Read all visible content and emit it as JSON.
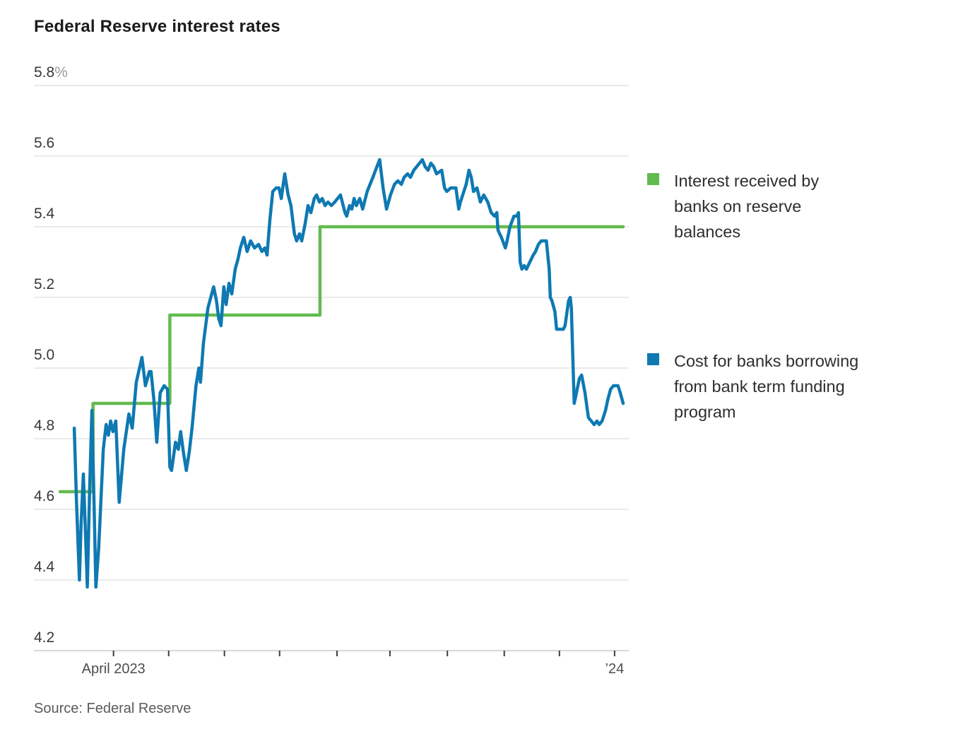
{
  "header": {
    "title": "Federal Reserve interest rates"
  },
  "footer": {
    "source": "Source: Federal Reserve"
  },
  "chart_data": {
    "type": "line",
    "title": "Federal Reserve interest rates",
    "source": "Source: Federal Reserve",
    "background": "#ffffff",
    "grid": {
      "show": true,
      "color": "#e4e4e4",
      "axis_line_color": "#cccccc",
      "tick_color": "#3c3c3c"
    },
    "y_axis": {
      "unit": "percent",
      "min": 4.2,
      "max": 5.8,
      "step": 0.2,
      "tick_values": [
        5.8,
        5.6,
        5.4,
        5.2,
        5.0,
        4.8,
        4.6,
        4.4,
        4.2
      ],
      "tick_labels": [
        "5.8%",
        "5.6",
        "5.4",
        "5.2",
        "5.0",
        "4.8",
        "4.6",
        "4.4",
        "4.2"
      ]
    },
    "x_axis": {
      "description": "Time, daily, from BTFP launch (mid-March 2023) to early January 2024; ticks are month starts April 2023 through January 2024",
      "x_unit": "percent of plot width",
      "tick_positions_pct": [
        9.4,
        19.1,
        28.9,
        38.6,
        48.7,
        58.0,
        68.1,
        78.1,
        87.8,
        97.5
      ],
      "tick_labels": [
        "April 2023",
        "",
        "",
        "",
        "",
        "",
        "",
        "",
        "",
        "’24"
      ]
    },
    "legend": {
      "position": "right",
      "items": [
        {
          "color": "#62bb4e",
          "lines": [
            "Interest received by",
            "banks on reserve",
            "balances"
          ]
        },
        {
          "color": "#0e79b2",
          "lines": [
            "Cost for banks borrowing",
            "from bank term funding",
            "program"
          ]
        }
      ]
    },
    "series": [
      {
        "name": "Interest received by banks on reserve balances",
        "color": "#62bb4e",
        "style": "step",
        "stroke_width": 4.5,
        "points": [
          [
            0,
            4.65
          ],
          [
            5.8,
            4.65
          ],
          [
            5.8,
            4.9
          ],
          [
            19.3,
            4.9
          ],
          [
            19.3,
            5.15
          ],
          [
            45.7,
            5.15
          ],
          [
            45.7,
            5.4
          ],
          [
            99.0,
            5.4
          ]
        ]
      },
      {
        "name": "Cost for banks borrowing from bank term funding program",
        "color": "#0e79b2",
        "style": "line",
        "stroke_width": 4.5,
        "points": [
          [
            2.5,
            4.83
          ],
          [
            2.9,
            4.62
          ],
          [
            3.4,
            4.4
          ],
          [
            3.7,
            4.56
          ],
          [
            4.1,
            4.7
          ],
          [
            4.5,
            4.52
          ],
          [
            4.8,
            4.38
          ],
          [
            5.2,
            4.66
          ],
          [
            5.6,
            4.88
          ],
          [
            6.0,
            4.6
          ],
          [
            6.3,
            4.38
          ],
          [
            6.8,
            4.49
          ],
          [
            7.6,
            4.77
          ],
          [
            8.1,
            4.84
          ],
          [
            8.5,
            4.81
          ],
          [
            8.9,
            4.85
          ],
          [
            9.3,
            4.82
          ],
          [
            9.8,
            4.85
          ],
          [
            10.4,
            4.62
          ],
          [
            11.2,
            4.77
          ],
          [
            12.1,
            4.87
          ],
          [
            12.7,
            4.83
          ],
          [
            13.4,
            4.96
          ],
          [
            14.4,
            5.03
          ],
          [
            15.0,
            4.95
          ],
          [
            15.7,
            4.99
          ],
          [
            16.0,
            4.99
          ],
          [
            16.5,
            4.91
          ],
          [
            17.0,
            4.79
          ],
          [
            17.6,
            4.93
          ],
          [
            18.3,
            4.95
          ],
          [
            18.9,
            4.94
          ],
          [
            19.3,
            4.72
          ],
          [
            19.6,
            4.71
          ],
          [
            20.3,
            4.79
          ],
          [
            20.8,
            4.77
          ],
          [
            21.2,
            4.82
          ],
          [
            21.7,
            4.76
          ],
          [
            22.2,
            4.71
          ],
          [
            22.7,
            4.76
          ],
          [
            23.2,
            4.83
          ],
          [
            23.9,
            4.95
          ],
          [
            24.4,
            5.0
          ],
          [
            24.7,
            4.96
          ],
          [
            25.2,
            5.07
          ],
          [
            26.0,
            5.17
          ],
          [
            26.5,
            5.2
          ],
          [
            27.0,
            5.23
          ],
          [
            27.5,
            5.19
          ],
          [
            27.9,
            5.14
          ],
          [
            28.3,
            5.12
          ],
          [
            28.8,
            5.23
          ],
          [
            29.2,
            5.18
          ],
          [
            29.7,
            5.24
          ],
          [
            30.2,
            5.21
          ],
          [
            30.8,
            5.28
          ],
          [
            31.3,
            5.31
          ],
          [
            31.7,
            5.34
          ],
          [
            32.3,
            5.37
          ],
          [
            32.9,
            5.33
          ],
          [
            33.5,
            5.36
          ],
          [
            34.2,
            5.34
          ],
          [
            34.9,
            5.35
          ],
          [
            35.5,
            5.33
          ],
          [
            36.0,
            5.34
          ],
          [
            36.4,
            5.32
          ],
          [
            36.9,
            5.42
          ],
          [
            37.4,
            5.5
          ],
          [
            38.0,
            5.51
          ],
          [
            38.5,
            5.51
          ],
          [
            38.9,
            5.48
          ],
          [
            39.5,
            5.55
          ],
          [
            40.1,
            5.49
          ],
          [
            40.6,
            5.46
          ],
          [
            41.2,
            5.38
          ],
          [
            41.6,
            5.36
          ],
          [
            42.1,
            5.38
          ],
          [
            42.5,
            5.36
          ],
          [
            43.1,
            5.41
          ],
          [
            43.6,
            5.46
          ],
          [
            44.1,
            5.44
          ],
          [
            44.7,
            5.48
          ],
          [
            45.1,
            5.49
          ],
          [
            45.6,
            5.47
          ],
          [
            46.1,
            5.48
          ],
          [
            46.6,
            5.46
          ],
          [
            47.1,
            5.47
          ],
          [
            47.7,
            5.46
          ],
          [
            48.3,
            5.47
          ],
          [
            48.8,
            5.48
          ],
          [
            49.3,
            5.49
          ],
          [
            50.1,
            5.44
          ],
          [
            50.4,
            5.43
          ],
          [
            50.9,
            5.46
          ],
          [
            51.3,
            5.45
          ],
          [
            51.7,
            5.48
          ],
          [
            52.1,
            5.46
          ],
          [
            52.7,
            5.48
          ],
          [
            53.2,
            5.45
          ],
          [
            54.0,
            5.5
          ],
          [
            55.0,
            5.54
          ],
          [
            55.7,
            5.57
          ],
          [
            56.2,
            5.59
          ],
          [
            56.8,
            5.51
          ],
          [
            57.4,
            5.45
          ],
          [
            58.1,
            5.49
          ],
          [
            58.8,
            5.52
          ],
          [
            59.4,
            5.53
          ],
          [
            60.0,
            5.52
          ],
          [
            60.5,
            5.54
          ],
          [
            61.1,
            5.55
          ],
          [
            61.6,
            5.54
          ],
          [
            62.2,
            5.56
          ],
          [
            62.7,
            5.57
          ],
          [
            63.2,
            5.58
          ],
          [
            63.7,
            5.59
          ],
          [
            64.2,
            5.57
          ],
          [
            64.7,
            5.56
          ],
          [
            65.2,
            5.58
          ],
          [
            65.7,
            5.57
          ],
          [
            66.2,
            5.55
          ],
          [
            67.1,
            5.56
          ],
          [
            67.6,
            5.51
          ],
          [
            68.0,
            5.5
          ],
          [
            68.7,
            5.51
          ],
          [
            69.2,
            5.51
          ],
          [
            69.6,
            5.51
          ],
          [
            70.1,
            5.45
          ],
          [
            70.4,
            5.47
          ],
          [
            70.8,
            5.49
          ],
          [
            71.4,
            5.52
          ],
          [
            71.9,
            5.56
          ],
          [
            72.3,
            5.54
          ],
          [
            72.7,
            5.5
          ],
          [
            73.3,
            5.51
          ],
          [
            73.9,
            5.47
          ],
          [
            74.5,
            5.49
          ],
          [
            75.2,
            5.47
          ],
          [
            75.8,
            5.44
          ],
          [
            76.4,
            5.43
          ],
          [
            76.8,
            5.44
          ],
          [
            77.0,
            5.39
          ],
          [
            77.6,
            5.37
          ],
          [
            78.3,
            5.34
          ],
          [
            78.6,
            5.36
          ],
          [
            79.1,
            5.4
          ],
          [
            79.8,
            5.43
          ],
          [
            80.3,
            5.43
          ],
          [
            80.6,
            5.44
          ],
          [
            80.9,
            5.3
          ],
          [
            81.2,
            5.28
          ],
          [
            81.6,
            5.29
          ],
          [
            82.0,
            5.28
          ],
          [
            82.6,
            5.3
          ],
          [
            83.2,
            5.32
          ],
          [
            83.6,
            5.33
          ],
          [
            84.1,
            5.35
          ],
          [
            84.6,
            5.36
          ],
          [
            85.1,
            5.36
          ],
          [
            85.5,
            5.36
          ],
          [
            86.0,
            5.28
          ],
          [
            86.2,
            5.2
          ],
          [
            86.5,
            5.19
          ],
          [
            87.0,
            5.16
          ],
          [
            87.3,
            5.11
          ],
          [
            88.0,
            5.11
          ],
          [
            88.5,
            5.11
          ],
          [
            88.8,
            5.12
          ],
          [
            89.4,
            5.19
          ],
          [
            89.7,
            5.2
          ],
          [
            89.9,
            5.17
          ],
          [
            90.4,
            4.9
          ],
          [
            90.8,
            4.93
          ],
          [
            91.3,
            4.97
          ],
          [
            91.7,
            4.98
          ],
          [
            92.3,
            4.93
          ],
          [
            92.9,
            4.86
          ],
          [
            93.4,
            4.85
          ],
          [
            93.9,
            4.84
          ],
          [
            94.4,
            4.85
          ],
          [
            94.8,
            4.84
          ],
          [
            95.3,
            4.85
          ],
          [
            95.9,
            4.88
          ],
          [
            96.3,
            4.91
          ],
          [
            96.8,
            4.94
          ],
          [
            97.3,
            4.95
          ],
          [
            97.8,
            4.95
          ],
          [
            98.1,
            4.95
          ],
          [
            98.5,
            4.93
          ],
          [
            99.0,
            4.9
          ]
        ]
      }
    ]
  }
}
